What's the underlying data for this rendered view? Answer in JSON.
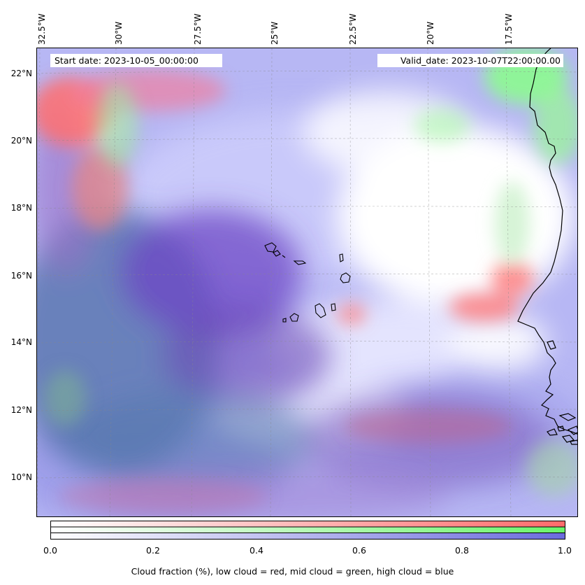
{
  "map": {
    "start_date": "Start date: 2023-10-05_00:00:00",
    "valid_date": "Valid_date: 2023-10-07T22:00:00.00",
    "lon_labels": [
      "32.5°W",
      "30°W",
      "27.5°W",
      "25°W",
      "22.5°W",
      "20°W",
      "17.5°W"
    ],
    "lat_labels": [
      "22°N",
      "20°N",
      "18°N",
      "16°N",
      "14°N",
      "12°N",
      "10°N"
    ],
    "colors": {
      "low_cloud": "#ff6666",
      "mid_cloud": "#66ee66",
      "high_cloud": "#6666ee"
    }
  },
  "colorbar": {
    "ticks": [
      "0.0",
      "0.2",
      "0.4",
      "0.6",
      "0.8",
      "1.0"
    ],
    "caption": "Cloud fraction (%), low cloud = red, mid cloud = green, high cloud = blue"
  }
}
